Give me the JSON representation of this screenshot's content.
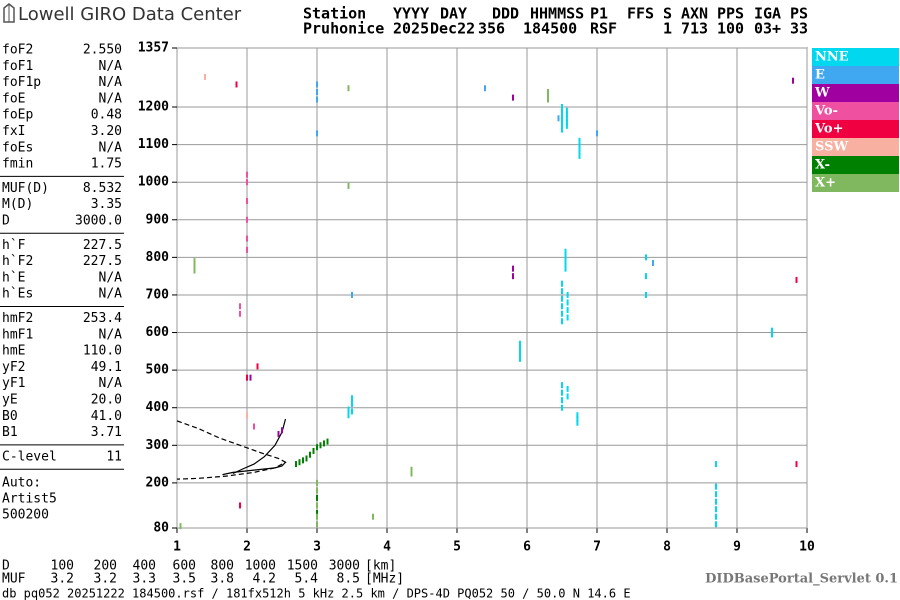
{
  "header": {
    "logo": "Lowell GIRO Data Center",
    "labels": [
      "Station",
      "YYYY",
      "DAY",
      "DDD",
      "HHMMSS",
      "P1",
      "FFS",
      "S",
      "AXN",
      "PPS",
      "IGA",
      "PS"
    ],
    "values": [
      "Pruhonice",
      "2025",
      "Dec22",
      "356",
      "184500",
      "RSF",
      "1",
      "713",
      "100",
      "03+",
      "33"
    ]
  },
  "params": [
    [
      {
        "name": "foF2",
        "value": "2.550"
      },
      {
        "name": "foF1",
        "value": "N/A"
      },
      {
        "name": "foF1p",
        "value": "N/A"
      },
      {
        "name": "foE",
        "value": "N/A"
      },
      {
        "name": "foEp",
        "value": "0.48"
      },
      {
        "name": "fxI",
        "value": "3.20"
      },
      {
        "name": "foEs",
        "value": "N/A"
      },
      {
        "name": "fmin",
        "value": "1.75"
      }
    ],
    [
      {
        "name": "MUF(D)",
        "value": "8.532"
      },
      {
        "name": "M(D)",
        "value": "3.35"
      },
      {
        "name": "D",
        "value": "3000.0"
      }
    ],
    [
      {
        "name": "h`F",
        "value": "227.5"
      },
      {
        "name": "h`F2",
        "value": "227.5"
      },
      {
        "name": "h`E",
        "value": "N/A"
      },
      {
        "name": "h`Es",
        "value": "N/A"
      }
    ],
    [
      {
        "name": "hmF2",
        "value": "253.4"
      },
      {
        "name": "hmF1",
        "value": "N/A"
      },
      {
        "name": "hmE",
        "value": "110.0"
      },
      {
        "name": "yF2",
        "value": "49.1"
      },
      {
        "name": "yF1",
        "value": "N/A"
      },
      {
        "name": "yE",
        "value": "20.0"
      },
      {
        "name": "B0",
        "value": "41.0"
      },
      {
        "name": "B1",
        "value": "3.71"
      }
    ],
    [
      {
        "name": "C-level",
        "value": "11"
      }
    ]
  ],
  "autoscaling": [
    "Auto:",
    "Artist5",
    "500200"
  ],
  "chart_data": {
    "type": "scatter",
    "xlim": [
      1,
      10
    ],
    "ylim": [
      80,
      1357
    ],
    "xticks": [
      1,
      2,
      3,
      4,
      5,
      6,
      7,
      8,
      9,
      10
    ],
    "yticks": [
      80,
      200,
      300,
      400,
      500,
      600,
      700,
      800,
      900,
      1000,
      1100,
      1200,
      1357
    ],
    "grid": true,
    "series": [
      {
        "name": "NNE",
        "color": "#00d8f0",
        "x": [
          6.5,
          6.5,
          6.5,
          6.5,
          6.5,
          6.5,
          6.5,
          6.57,
          6.57,
          6.57,
          6.57,
          6.57,
          6.75,
          6.75,
          6.75,
          6.75,
          6.75,
          6.5,
          6.5,
          6.5,
          6.5,
          6.5,
          6.5,
          6.58,
          6.58,
          6.58,
          6.58,
          6.5,
          6.5,
          6.5,
          6.5,
          6.58,
          6.58,
          6.72,
          6.72,
          6.72,
          5.9,
          5.9,
          5.9,
          5.9,
          8.7,
          8.7,
          8.7,
          8.7,
          8.7,
          8.7,
          8.7,
          9.5,
          9.5,
          3.45,
          3.45,
          3.5,
          3.5,
          3.5,
          6.55,
          6.55,
          6.55,
          6.55,
          7.7,
          7.7,
          7.7
        ],
        "values": [
          1140,
          1150,
          1160,
          1170,
          1180,
          1190,
          1200,
          1150,
          1160,
          1170,
          1180,
          1190,
          1070,
          1080,
          1090,
          1100,
          1110,
          630,
          650,
          670,
          690,
          710,
          730,
          640,
          660,
          680,
          700,
          400,
          420,
          440,
          460,
          430,
          450,
          360,
          370,
          380,
          530,
          545,
          560,
          570,
          90,
          110,
          130,
          150,
          170,
          190,
          250,
          595,
          605,
          380,
          395,
          390,
          410,
          425,
          770,
          785,
          800,
          815,
          700,
          750,
          800
        ]
      },
      {
        "name": "E",
        "color": "#40a8f0",
        "x": [
          3.0,
          3.0,
          3.0,
          3.0,
          6.45,
          7.0,
          5.4,
          7.8,
          3.5
        ],
        "values": [
          1130,
          1220,
          1240,
          1260,
          1170,
          1130,
          1250,
          785,
          700
        ]
      },
      {
        "name": "W",
        "color": "#a000a0",
        "x": [
          2.5,
          2.45,
          5.8,
          5.8,
          5.8,
          9.8,
          2.05
        ],
        "values": [
          340,
          330,
          1225,
          770,
          750,
          1270,
          480
        ]
      },
      {
        "name": "Vo-",
        "color": "#f050a0",
        "x": [
          2.0,
          2.0,
          2.0,
          2.0,
          2.0,
          1.9,
          1.9,
          2.1,
          2.0
        ],
        "values": [
          900,
          950,
          1000,
          850,
          1020,
          650,
          670,
          350,
          820
        ]
      },
      {
        "name": "Vo+",
        "color": "#f00040",
        "x": [
          1.85,
          2.0,
          2.15,
          9.85,
          9.85,
          1.9
        ],
        "values": [
          1260,
          480,
          510,
          740,
          250,
          140
        ]
      },
      {
        "name": "SSW",
        "color": "#f8b0a0",
        "x": [
          1.4,
          2.0
        ],
        "values": [
          1280,
          380
        ]
      },
      {
        "name": "X-",
        "color": "#008000",
        "x": [
          2.7,
          2.75,
          2.8,
          2.85,
          2.9,
          2.95,
          3.0,
          3.05,
          3.1,
          3.15,
          3.0,
          3.0
        ],
        "values": [
          250,
          255,
          260,
          265,
          275,
          285,
          295,
          300,
          305,
          310,
          160,
          120
        ]
      },
      {
        "name": "X+",
        "color": "#80b860",
        "x": [
          1.25,
          1.25,
          1.25,
          3.0,
          3.0,
          3.0,
          3.0,
          3.0,
          4.35,
          4.35,
          3.45,
          3.45,
          6.3,
          6.3,
          6.3,
          3.8,
          1.05
        ],
        "values": [
          790,
          780,
          765,
          200,
          180,
          140,
          110,
          90,
          225,
          235,
          990,
          1250,
          1240,
          1230,
          1220,
          110,
          85
        ]
      }
    ],
    "traces": [
      {
        "color": "#000000",
        "dashed": false,
        "x": [
          1.65,
          1.8,
          2.0,
          2.2,
          2.4,
          2.5,
          2.55
        ],
        "values": [
          222,
          228,
          232,
          236,
          240,
          245,
          255
        ]
      },
      {
        "color": "#000000",
        "dashed": false,
        "x": [
          1.8,
          1.95,
          2.1,
          2.25,
          2.4,
          2.5,
          2.55
        ],
        "values": [
          225,
          238,
          250,
          270,
          300,
          335,
          370
        ]
      },
      {
        "color": "#000000",
        "dashed": true,
        "x": [
          1.0,
          1.3,
          1.6,
          1.9,
          2.2,
          2.45,
          2.55,
          2.4,
          2.1,
          1.7,
          1.3,
          1.0
        ],
        "values": [
          365,
          345,
          320,
          300,
          280,
          265,
          255,
          240,
          228,
          218,
          212,
          210
        ]
      }
    ]
  },
  "muf_table": {
    "rows": [
      {
        "label": "D",
        "values": [
          100,
          200,
          400,
          600,
          800,
          1000,
          1500,
          3000
        ],
        "unit": "[km]"
      },
      {
        "label": "MUF",
        "values": [
          3.2,
          3.2,
          3.3,
          3.5,
          3.8,
          4.2,
          5.4,
          8.5
        ],
        "unit": "[MHz]"
      }
    ]
  },
  "server": "DIDBasePortal_Servlet 0.1",
  "footer": "db pq052 20251222 184500.rsf / 181fx512h 5 kHz 2.5 km / DPS-4D PQ052 50 / 50.0 N 14.6 E"
}
